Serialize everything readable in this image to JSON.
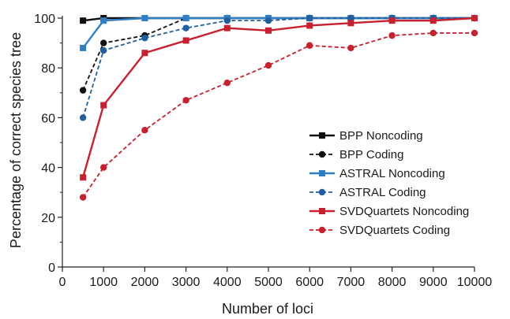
{
  "chart_data": {
    "type": "line",
    "title": "",
    "xlabel": "Number of loci",
    "ylabel": "Percentage of correct species tree",
    "xlim": [
      0,
      10000
    ],
    "ylim": [
      0,
      100
    ],
    "x_ticks": [
      0,
      1000,
      2000,
      3000,
      4000,
      5000,
      6000,
      7000,
      8000,
      9000,
      10000
    ],
    "y_ticks": [
      0,
      20,
      40,
      60,
      80,
      100
    ],
    "grid": false,
    "legend_position": "right",
    "x": [
      500,
      1000,
      2000,
      3000,
      4000,
      5000,
      6000,
      7000,
      8000,
      9000,
      10000
    ],
    "series": [
      {
        "name": "BPP Noncoding",
        "color": "#111111",
        "dashed": false,
        "marker": "square",
        "values": [
          99,
          100,
          100,
          100,
          100,
          100,
          100,
          100,
          100,
          100,
          100
        ]
      },
      {
        "name": "BPP Coding",
        "color": "#111111",
        "dashed": true,
        "marker": "circle",
        "values": [
          71,
          90,
          93,
          100,
          100,
          100,
          100,
          100,
          100,
          100,
          100
        ]
      },
      {
        "name": "ASTRAL Noncoding",
        "color": "#2f7fc4",
        "dashed": false,
        "marker": "square",
        "values": [
          88,
          99,
          100,
          100,
          100,
          100,
          100,
          100,
          100,
          100,
          100
        ]
      },
      {
        "name": "ASTRAL Coding",
        "color": "#1f5f9f",
        "dashed": true,
        "marker": "circle",
        "values": [
          60,
          87,
          92,
          96,
          99,
          99,
          100,
          100,
          100,
          100,
          100
        ]
      },
      {
        "name": "SVDQuartets Noncoding",
        "color": "#c8202e",
        "dashed": false,
        "marker": "square",
        "values": [
          36,
          65,
          86,
          91,
          96,
          95,
          97,
          98,
          99,
          99,
          100
        ]
      },
      {
        "name": "SVDQuartets Coding",
        "color": "#c8202e",
        "dashed": true,
        "marker": "circle",
        "values": [
          28,
          40,
          55,
          67,
          74,
          81,
          89,
          88,
          93,
          94,
          94
        ]
      }
    ]
  }
}
